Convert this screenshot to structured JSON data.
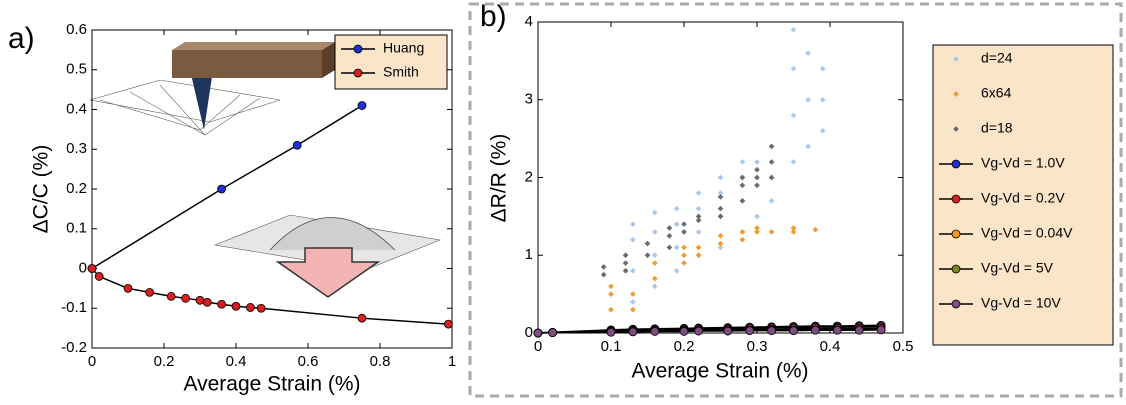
{
  "chart_data": [
    {
      "type": "line",
      "panel": "a)",
      "xlabel": "Average Strain (%)",
      "ylabel": "ΔC/C (%)",
      "xlim": [
        0,
        1
      ],
      "xticks": [
        0,
        0.2,
        0.4,
        0.6,
        0.8,
        1
      ],
      "ylim": [
        -0.2,
        0.6
      ],
      "yticks": [
        -0.2,
        -0.1,
        0,
        0.1,
        0.2,
        0.3,
        0.4,
        0.5,
        0.6
      ],
      "legend": "top-right",
      "series": [
        {
          "name": "Huang",
          "color": "#1f2fd0",
          "x": [
            0,
            0.36,
            0.57,
            0.75
          ],
          "values": [
            0,
            0.2,
            0.31,
            0.41
          ]
        },
        {
          "name": "Smith",
          "color": "#d81f1f",
          "x": [
            0,
            0.02,
            0.1,
            0.16,
            0.22,
            0.26,
            0.3,
            0.32,
            0.36,
            0.4,
            0.44,
            0.47,
            0.75,
            0.99
          ],
          "values": [
            0,
            -0.02,
            -0.05,
            -0.06,
            -0.07,
            -0.075,
            -0.08,
            -0.085,
            -0.09,
            -0.095,
            -0.098,
            -0.1,
            -0.125,
            -0.14
          ]
        }
      ]
    },
    {
      "type": "scatter",
      "panel": "b)",
      "xlabel": "Average Strain (%)",
      "ylabel": "ΔR/R (%)",
      "xlim": [
        0,
        0.5
      ],
      "xticks": [
        0,
        0.1,
        0.2,
        0.3,
        0.4,
        0.5
      ],
      "ylim": [
        0,
        4
      ],
      "yticks": [
        0,
        1,
        2,
        3,
        4
      ],
      "legend": "right",
      "series": [
        {
          "name": "d=24",
          "color": "#a9c8ec",
          "marker": "dot",
          "x": [
            0.13,
            0.13,
            0.13,
            0.13,
            0.16,
            0.16,
            0.16,
            0.16,
            0.19,
            0.19,
            0.19,
            0.19,
            0.22,
            0.22,
            0.22,
            0.22,
            0.25,
            0.25,
            0.25,
            0.25,
            0.28,
            0.28,
            0.28,
            0.28,
            0.3,
            0.3,
            0.3,
            0.32,
            0.32,
            0.32,
            0.35,
            0.35,
            0.35,
            0.35,
            0.37,
            0.37,
            0.37,
            0.39,
            0.39,
            0.39
          ],
          "values": [
            0.4,
            0.8,
            1.2,
            1.4,
            0.6,
            1.0,
            1.3,
            1.55,
            0.8,
            1.1,
            1.4,
            1.6,
            1.0,
            1.3,
            1.6,
            1.8,
            1.1,
            1.5,
            1.8,
            2.0,
            1.3,
            1.7,
            2.0,
            2.2,
            1.5,
            1.9,
            2.2,
            1.7,
            2.0,
            2.4,
            2.2,
            2.8,
            3.4,
            3.9,
            2.4,
            3.0,
            3.6,
            2.6,
            3.0,
            3.4
          ]
        },
        {
          "name": "6x64",
          "color": "#f39a2e",
          "marker": "dot",
          "x": [
            0.1,
            0.1,
            0.1,
            0.13,
            0.13,
            0.16,
            0.16,
            0.2,
            0.2,
            0.2,
            0.22,
            0.22,
            0.25,
            0.25,
            0.28,
            0.28,
            0.3,
            0.3,
            0.32,
            0.35,
            0.35,
            0.38
          ],
          "values": [
            0.3,
            0.5,
            0.6,
            0.3,
            0.5,
            0.7,
            0.9,
            0.9,
            1.0,
            1.1,
            1.0,
            1.1,
            1.15,
            1.25,
            1.2,
            1.3,
            1.3,
            1.35,
            1.3,
            1.3,
            1.35,
            1.33
          ]
        },
        {
          "name": "d=18",
          "color": "#6b6b6b",
          "marker": "dot",
          "x": [
            0.09,
            0.09,
            0.12,
            0.12,
            0.12,
            0.15,
            0.15,
            0.18,
            0.18,
            0.18,
            0.2,
            0.2,
            0.22,
            0.22,
            0.25,
            0.25,
            0.25,
            0.28,
            0.28,
            0.28,
            0.3,
            0.3,
            0.3,
            0.32,
            0.32,
            0.32
          ],
          "values": [
            0.75,
            0.85,
            0.8,
            0.9,
            1.0,
            1.0,
            1.15,
            1.1,
            1.25,
            1.35,
            1.3,
            1.4,
            1.45,
            1.5,
            1.5,
            1.6,
            1.75,
            1.7,
            1.9,
            2.0,
            1.9,
            2.0,
            2.1,
            2.0,
            2.2,
            2.4
          ]
        },
        {
          "name": "Vg-Vd = 1.0V",
          "color": "#1f2fd0",
          "marker": "circle",
          "line": true,
          "x": [
            0,
            0.02,
            0.1,
            0.13,
            0.16,
            0.2,
            0.22,
            0.26,
            0.29,
            0.32,
            0.35,
            0.38,
            0.41,
            0.44,
            0.47
          ],
          "values": [
            0,
            0.01,
            0.04,
            0.05,
            0.055,
            0.06,
            0.065,
            0.07,
            0.075,
            0.08,
            0.085,
            0.09,
            0.09,
            0.095,
            0.1
          ]
        },
        {
          "name": "Vg-Vd = 0.2V",
          "color": "#d81f1f",
          "marker": "circle",
          "line": true,
          "x": [
            0,
            0.02,
            0.1,
            0.13,
            0.16,
            0.2,
            0.22,
            0.26,
            0.29,
            0.32,
            0.35,
            0.38,
            0.41,
            0.44,
            0.47
          ],
          "values": [
            0,
            0.01,
            0.03,
            0.04,
            0.045,
            0.05,
            0.055,
            0.06,
            0.065,
            0.07,
            0.07,
            0.075,
            0.075,
            0.08,
            0.08
          ]
        },
        {
          "name": "Vg-Vd = 0.04V",
          "color": "#f39a2e",
          "marker": "circle",
          "line": true,
          "x": [
            0,
            0.02,
            0.1,
            0.13,
            0.16,
            0.2,
            0.22,
            0.26,
            0.29,
            0.32,
            0.35,
            0.38,
            0.41,
            0.44,
            0.47
          ],
          "values": [
            0,
            0.005,
            0.02,
            0.03,
            0.035,
            0.04,
            0.04,
            0.045,
            0.05,
            0.05,
            0.055,
            0.055,
            0.06,
            0.06,
            0.06
          ]
        },
        {
          "name": "Vg-Vd = 5V",
          "color": "#7a8a1a",
          "marker": "circle",
          "line": true,
          "x": [
            0,
            0.02,
            0.1,
            0.13,
            0.16,
            0.2,
            0.22,
            0.26,
            0.29,
            0.32,
            0.35,
            0.38,
            0.41,
            0.44,
            0.47
          ],
          "values": [
            0,
            0.005,
            0.015,
            0.02,
            0.025,
            0.03,
            0.03,
            0.035,
            0.035,
            0.04,
            0.04,
            0.04,
            0.045,
            0.045,
            0.045
          ]
        },
        {
          "name": "Vg-Vd = 10V",
          "color": "#7e4c7e",
          "marker": "circle",
          "line": true,
          "x": [
            0,
            0.02,
            0.1,
            0.13,
            0.16,
            0.2,
            0.22,
            0.26,
            0.29,
            0.32,
            0.35,
            0.38,
            0.41,
            0.44,
            0.47
          ],
          "values": [
            0,
            0.005,
            0.01,
            0.015,
            0.02,
            0.02,
            0.025,
            0.025,
            0.03,
            0.03,
            0.03,
            0.035,
            0.035,
            0.035,
            0.04
          ]
        }
      ]
    }
  ]
}
